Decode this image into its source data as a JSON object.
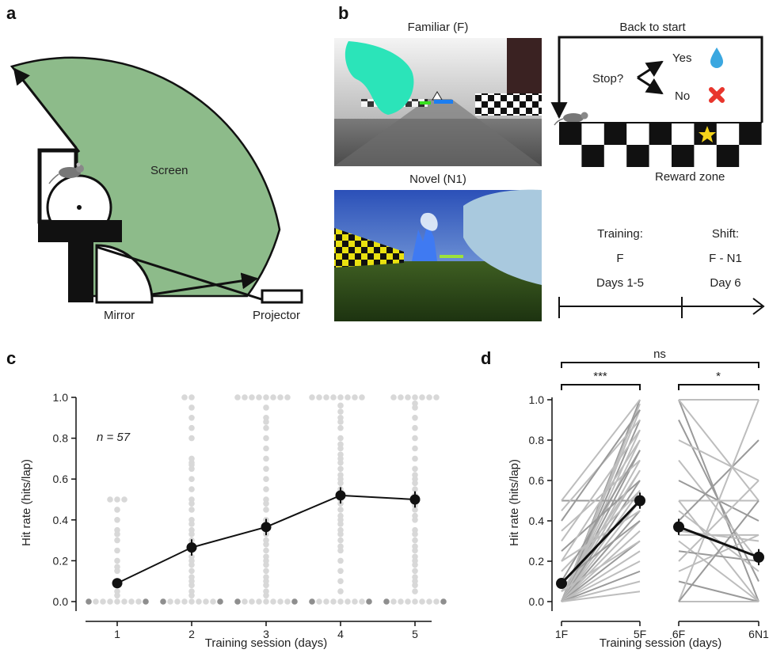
{
  "panel_a": {
    "letter": "a",
    "screen_label": "Screen",
    "mirror_label": "Mirror",
    "projector_label": "Projector",
    "colors": {
      "screen": "#8dbb8a"
    }
  },
  "panel_b": {
    "letter": "b",
    "familiar_title": "Familiar (F)",
    "novel_title": "Novel (N1)",
    "task": {
      "back_to_start": "Back to start",
      "stop": "Stop?",
      "yes": "Yes",
      "no": "No",
      "reward_zone": "Reward zone",
      "colors": {
        "drop": "#3aa7e0",
        "cross": "#e8352c",
        "star": "#f4d41b"
      }
    },
    "timeline": {
      "training_title": "Training:",
      "training_env": "F",
      "training_days": "Days 1-5",
      "shift_title": "Shift:",
      "shift_env": "F - N1",
      "shift_day": "Day 6"
    }
  },
  "panel_c": {
    "letter": "c",
    "n_label": "n = 57",
    "chart_data": {
      "type": "scatter",
      "x": [
        1,
        2,
        3,
        4,
        5
      ],
      "mean": [
        0.09,
        0.265,
        0.365,
        0.52,
        0.5
      ],
      "sem": [
        0.02,
        0.04,
        0.04,
        0.04,
        0.04
      ],
      "xlabel": "Training session (days)",
      "ylabel": "Hit rate (hits/lap)",
      "ylim": [
        0,
        1
      ],
      "yticks": [
        "0.0",
        "0.2",
        "0.4",
        "0.6",
        "0.8",
        "1.0"
      ],
      "xticks": [
        "1",
        "2",
        "3",
        "4",
        "5"
      ],
      "individual_sessions": [
        {
          "day": 1,
          "values": [
            0.5,
            0.5,
            0.5,
            0.45,
            0.4,
            0.35,
            0.33,
            0.3,
            0.25,
            0.2,
            0.17,
            0.15,
            0.1,
            0.08,
            0.05,
            0.03
          ]
        },
        {
          "day": 2,
          "values": [
            1,
            1,
            0.95,
            0.9,
            0.85,
            0.8,
            0.7,
            0.68,
            0.67,
            0.65,
            0.6,
            0.55,
            0.5,
            0.48,
            0.45,
            0.4,
            0.38,
            0.35,
            0.33,
            0.3,
            0.28,
            0.25,
            0.22,
            0.2,
            0.18,
            0.15,
            0.12,
            0.1,
            0.08,
            0.05,
            0.03
          ]
        },
        {
          "day": 3,
          "values": [
            1,
            1,
            1,
            1,
            1,
            1,
            1,
            1,
            0.95,
            0.9,
            0.88,
            0.85,
            0.8,
            0.75,
            0.7,
            0.65,
            0.6,
            0.55,
            0.5,
            0.48,
            0.45,
            0.4,
            0.38,
            0.35,
            0.33,
            0.3,
            0.28,
            0.25,
            0.22,
            0.2,
            0.18,
            0.15,
            0.12,
            0.1,
            0.08,
            0.05,
            0.03
          ]
        },
        {
          "day": 4,
          "values": [
            1,
            1,
            1,
            1,
            1,
            1,
            1,
            1,
            0.96,
            0.93,
            0.9,
            0.88,
            0.85,
            0.8,
            0.77,
            0.75,
            0.72,
            0.7,
            0.68,
            0.65,
            0.62,
            0.6,
            0.58,
            0.55,
            0.52,
            0.5,
            0.48,
            0.45,
            0.42,
            0.4,
            0.38,
            0.35,
            0.33,
            0.3,
            0.27,
            0.25,
            0.2,
            0.15,
            0.1,
            0.05
          ]
        },
        {
          "day": 5,
          "values": [
            1,
            1,
            1,
            1,
            1,
            1,
            1,
            0.97,
            0.95,
            0.9,
            0.85,
            0.8,
            0.75,
            0.7,
            0.65,
            0.62,
            0.6,
            0.58,
            0.55,
            0.52,
            0.5,
            0.47,
            0.45,
            0.42,
            0.4,
            0.35,
            0.33,
            0.3,
            0.27,
            0.25,
            0.22,
            0.2,
            0.18,
            0.15,
            0.12,
            0.1,
            0.08,
            0.05
          ]
        }
      ]
    }
  },
  "panel_d": {
    "letter": "d",
    "sig": {
      "overall": "ns",
      "left": "***",
      "right": "*"
    },
    "chart_data": {
      "type": "line",
      "groups": [
        {
          "x": [
            "1F",
            "5F"
          ],
          "mean": [
            0.09,
            0.5
          ],
          "sem": [
            0.02,
            0.04
          ]
        },
        {
          "x": [
            "6F",
            "6N1"
          ],
          "mean": [
            0.37,
            0.22
          ],
          "sem": [
            0.04,
            0.04
          ]
        }
      ],
      "xlabel": "Training session (days)",
      "ylabel": "Hit rate (hits/lap)",
      "ylim": [
        0,
        1
      ],
      "yticks": [
        "0.0",
        "0.2",
        "0.4",
        "0.6",
        "0.8",
        "1.0"
      ],
      "xticks": [
        "1F",
        "5F",
        "6F",
        "6N1"
      ],
      "paired_lines_left": [
        [
          0,
          1
        ],
        [
          0,
          0.98
        ],
        [
          0,
          0.95
        ],
        [
          0,
          0.9
        ],
        [
          0,
          0.85
        ],
        [
          0,
          0.8
        ],
        [
          0,
          0.75
        ],
        [
          0,
          0.7
        ],
        [
          0,
          0.65
        ],
        [
          0,
          0.6
        ],
        [
          0,
          0.55
        ],
        [
          0,
          0.5
        ],
        [
          0,
          0.45
        ],
        [
          0,
          0.4
        ],
        [
          0,
          0.35
        ],
        [
          0,
          0.3
        ],
        [
          0,
          0.25
        ],
        [
          0,
          0.2
        ],
        [
          0,
          0.15
        ],
        [
          0,
          0.1
        ],
        [
          0,
          0.05
        ],
        [
          0.5,
          0.5
        ],
        [
          0.5,
          1
        ],
        [
          0.45,
          0.9
        ],
        [
          0.4,
          0.95
        ],
        [
          0.35,
          0.7
        ],
        [
          0.3,
          0.85
        ],
        [
          0.25,
          0.6
        ],
        [
          0.2,
          0.8
        ],
        [
          0.15,
          0.55
        ],
        [
          0.1,
          0.4
        ],
        [
          0.05,
          0.3
        ],
        [
          0.05,
          0.65
        ],
        [
          0.1,
          0.75
        ],
        [
          0.2,
          0.45
        ]
      ],
      "paired_lines_right": [
        [
          1,
          0
        ],
        [
          1,
          1
        ],
        [
          1,
          0.5
        ],
        [
          0.9,
          0.1
        ],
        [
          0.8,
          0.6
        ],
        [
          0.7,
          0.2
        ],
        [
          0.6,
          0.4
        ],
        [
          0.5,
          0
        ],
        [
          0.5,
          0.5
        ],
        [
          0.4,
          0.8
        ],
        [
          0.35,
          0.3
        ],
        [
          0.3,
          0
        ],
        [
          0.25,
          0.2
        ],
        [
          0.2,
          0.6
        ],
        [
          0.15,
          0.33
        ],
        [
          0.1,
          0
        ],
        [
          0,
          1
        ],
        [
          0,
          0
        ],
        [
          0,
          0.5
        ],
        [
          0.45,
          0.15
        ],
        [
          0.33,
          0.33
        ]
      ]
    }
  }
}
